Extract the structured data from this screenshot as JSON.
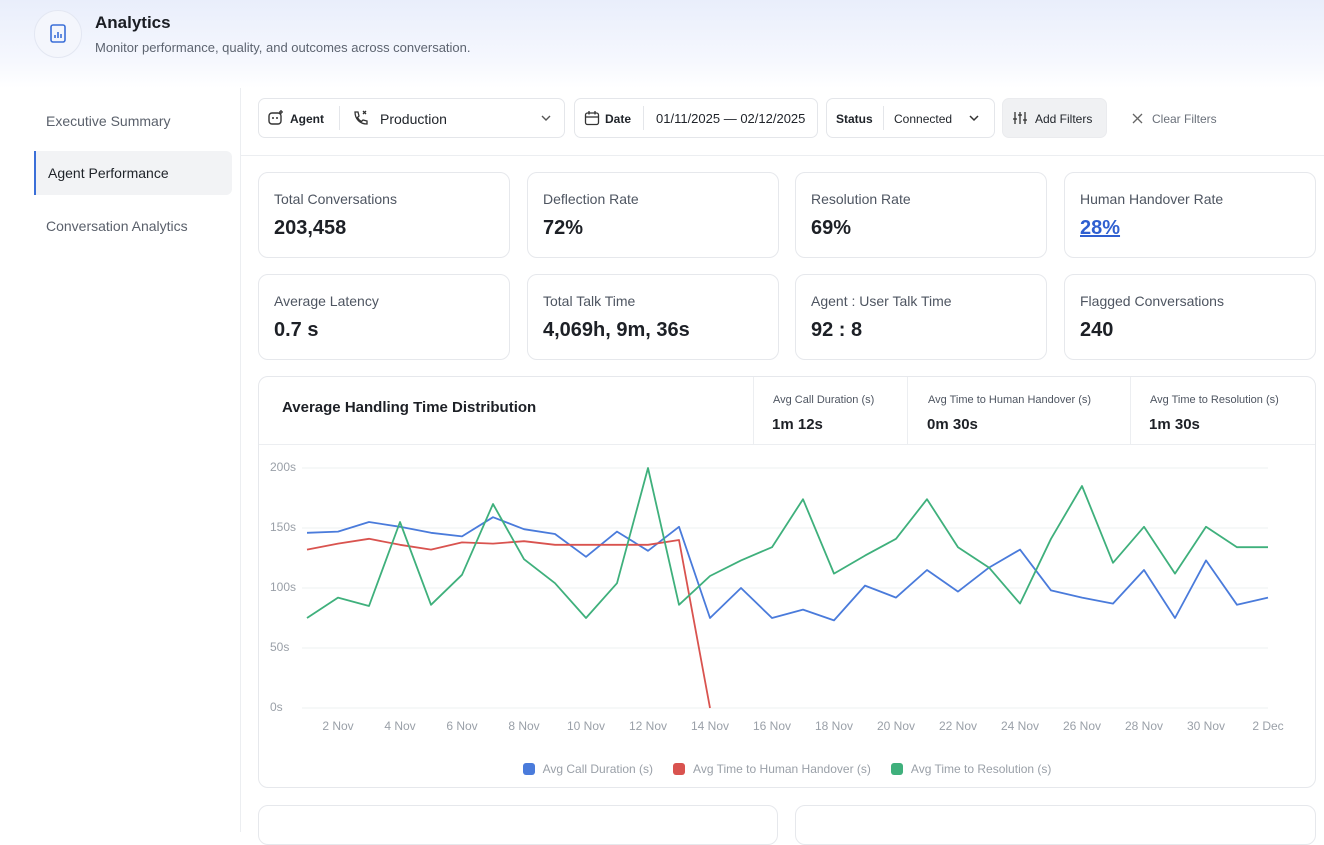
{
  "header": {
    "title": "Analytics",
    "subtitle": "Monitor performance, quality, and outcomes across conversation."
  },
  "sidebar": {
    "items": [
      "Executive Summary",
      "Agent Performance",
      "Conversation Analytics"
    ]
  },
  "filters": {
    "agent_label": "Agent",
    "agent_value": "Production",
    "date_label": "Date",
    "date_value": "01/11/2025 — 02/12/2025",
    "status_label": "Status",
    "status_value": "Connected",
    "add": "Add Filters",
    "clear": "Clear Filters"
  },
  "kpis": [
    {
      "label": "Total Conversations",
      "value": "203,458"
    },
    {
      "label": "Deflection Rate",
      "value": "72%"
    },
    {
      "label": "Resolution Rate",
      "value": "69%"
    },
    {
      "label": "Human Handover Rate",
      "value": "28%"
    },
    {
      "label": "Average Latency",
      "value": "0.7 s"
    },
    {
      "label": "Total Talk Time",
      "value": "4,069h, 9m, 36s"
    },
    {
      "label": "Agent : User Talk Time",
      "value": "92 : 8"
    },
    {
      "label": "Flagged Conversations",
      "value": "240"
    }
  ],
  "chart_panel": {
    "stats": [
      {
        "label": "Avg Call Duration (s)",
        "value": "1m 12s"
      },
      {
        "label": "Avg Time to Human Handover (s)",
        "value": "0m 30s"
      },
      {
        "label": "Avg Time to Resolution (s)",
        "value": "1m 30s"
      }
    ]
  },
  "chart_data": {
    "type": "line",
    "title": "Average Handling Time Distribution",
    "categories": [
      null,
      "2 Nov",
      null,
      "4 Nov",
      null,
      "6 Nov",
      null,
      "8 Nov",
      null,
      "10 Nov",
      null,
      "12 Nov",
      null,
      "14 Nov",
      null,
      "16 Nov",
      null,
      "18 Nov",
      null,
      "20 Nov",
      null,
      "22 Nov",
      null,
      "24 Nov",
      null,
      "26 Nov",
      null,
      "28 Nov",
      null,
      "30 Nov",
      null,
      "2 Dec"
    ],
    "series": [
      {
        "name": "Avg Call Duration (s)",
        "color": "#4a7bdb",
        "values": [
          146,
          147,
          155,
          151,
          146,
          143,
          159,
          149,
          145,
          126,
          147,
          131,
          151,
          75,
          100,
          75,
          82,
          73,
          102,
          92,
          115,
          97,
          117,
          132,
          98,
          92,
          87,
          115,
          75,
          123,
          86,
          92
        ]
      },
      {
        "name": "Avg Time to Human Handover (s)",
        "color": "#d9534f",
        "values": [
          132,
          137,
          141,
          136,
          132,
          138,
          137,
          139,
          136,
          136,
          136,
          136,
          140,
          0,
          null,
          null,
          null,
          null,
          null,
          null,
          null,
          null,
          null,
          null,
          null,
          null,
          null,
          null,
          null,
          null,
          null,
          null
        ]
      },
      {
        "name": "Avg Time to Resolution (s)",
        "color": "#3fb07c",
        "values": [
          75,
          92,
          85,
          155,
          86,
          111,
          170,
          124,
          104,
          75,
          104,
          200,
          86,
          110,
          123,
          134,
          174,
          112,
          127,
          141,
          174,
          134,
          117,
          87,
          141,
          185,
          121,
          151,
          112,
          151,
          134,
          134
        ]
      }
    ],
    "ylim": [
      0,
      200
    ],
    "yticks": [
      {
        "value": 0,
        "label": "0s"
      },
      {
        "value": 50,
        "label": "50s"
      },
      {
        "value": 100,
        "label": "100s"
      },
      {
        "value": 150,
        "label": "150s"
      },
      {
        "value": 200,
        "label": "200s"
      }
    ],
    "grid": true,
    "legend": "bottom"
  }
}
